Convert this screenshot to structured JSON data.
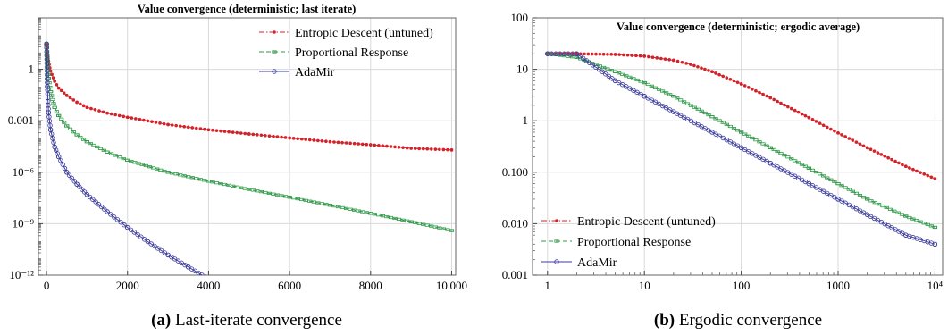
{
  "chart_data": [
    {
      "type": "line",
      "title": "Value convergence (deterministic; last iterate)",
      "caption_tag": "(a)",
      "caption_text": " Last-iterate convergence",
      "xscale": "linear",
      "yscale": "log",
      "xlim": [
        -200,
        10100
      ],
      "ylim": [
        1e-12,
        1000
      ],
      "xticks": [
        0,
        2000,
        4000,
        6000,
        8000,
        10000
      ],
      "xtick_labels": [
        "0",
        "2000",
        "4000",
        "6000",
        "8000",
        "10 000"
      ],
      "yticks": [
        1e-12,
        1e-09,
        1e-06,
        0.001,
        1
      ],
      "ytick_labels": [
        "10⁻¹²",
        "10⁻⁹",
        "10⁻⁶",
        "0.001",
        "1"
      ],
      "grid": true,
      "legend_position": "top-right",
      "series": [
        {
          "name": "Entropic Descent (untuned)",
          "color": "#d2232a",
          "style": "dashdot",
          "x": [
            0,
            50,
            100,
            200,
            300,
            500,
            750,
            1000,
            1500,
            2000,
            3000,
            4000,
            5000,
            6000,
            7000,
            8000,
            9000,
            10000
          ],
          "y": [
            30,
            3,
            0.8,
            0.2,
            0.08,
            0.03,
            0.012,
            0.006,
            0.0028,
            0.0016,
            0.0006,
            0.0003,
            0.00017,
            0.0001,
            6e-05,
            4e-05,
            2.5e-05,
            2e-05
          ]
        },
        {
          "name": "Proportional Response",
          "color": "#2f9a48",
          "style": "dashed",
          "x": [
            0,
            50,
            100,
            200,
            300,
            500,
            750,
            1000,
            1500,
            2000,
            3000,
            4000,
            5000,
            6000,
            7000,
            8000,
            9000,
            10000
          ],
          "y": [
            30,
            0.3,
            0.05,
            0.006,
            0.002,
            0.0005,
            0.00015,
            6e-05,
            1.5e-05,
            5e-06,
            1e-06,
            3e-07,
            1e-07,
            3.5e-08,
            1.2e-08,
            4e-09,
            1.3e-09,
            4e-10
          ]
        },
        {
          "name": "AdaMir",
          "color": "#3b3b9c",
          "style": "solid-circle",
          "x": [
            0,
            20,
            50,
            100,
            200,
            300,
            500,
            750,
            1000,
            1500,
            2000,
            2500,
            3000,
            3500,
            4000,
            4600
          ],
          "y": [
            30,
            0.1,
            0.003,
            0.0003,
            3e-05,
            8e-06,
            1e-06,
            2e-07,
            5e-08,
            5e-09,
            6e-10,
            9e-11,
            1.5e-11,
            3e-12,
            6e-13,
            1e-13
          ]
        }
      ]
    },
    {
      "type": "line",
      "title": "Value convergence (deterministic; ergodic average)",
      "caption_tag": "(b)",
      "caption_text": " Ergodic convergence",
      "xscale": "log",
      "yscale": "log",
      "xlim": [
        0.7,
        12000
      ],
      "ylim": [
        0.001,
        100
      ],
      "xticks": [
        1,
        10,
        100,
        1000,
        10000
      ],
      "xtick_labels": [
        "1",
        "10",
        "100",
        "1000",
        "10⁴"
      ],
      "yticks": [
        0.001,
        0.01,
        0.1,
        1,
        10,
        100
      ],
      "ytick_labels": [
        "0.001",
        "0.010",
        "0.100",
        "1",
        "10",
        "100"
      ],
      "grid": true,
      "legend_position": "bottom-left",
      "series": [
        {
          "name": "Entropic Descent (untuned)",
          "color": "#d2232a",
          "style": "dashdot",
          "x": [
            1,
            2,
            5,
            10,
            20,
            30,
            50,
            100,
            200,
            500,
            1000,
            2000,
            5000,
            10000
          ],
          "y": [
            20,
            20,
            19.5,
            18,
            15,
            12.5,
            9,
            5.2,
            2.8,
            1.15,
            0.58,
            0.3,
            0.13,
            0.075
          ]
        },
        {
          "name": "Proportional Response",
          "color": "#2f9a48",
          "style": "dashed",
          "x": [
            1,
            2,
            5,
            10,
            20,
            50,
            100,
            200,
            500,
            1000,
            2000,
            5000,
            10000
          ],
          "y": [
            20,
            17,
            9,
            5.5,
            3,
            1.2,
            0.6,
            0.3,
            0.12,
            0.06,
            0.03,
            0.014,
            0.0085
          ]
        },
        {
          "name": "AdaMir",
          "color": "#3b3b9c",
          "style": "solid-circle",
          "x": [
            1,
            2,
            5,
            10,
            20,
            50,
            100,
            200,
            500,
            1000,
            2000,
            5000,
            10000
          ],
          "y": [
            20,
            20,
            6,
            3,
            1.5,
            0.6,
            0.3,
            0.15,
            0.06,
            0.03,
            0.015,
            0.006,
            0.004
          ]
        }
      ]
    }
  ]
}
